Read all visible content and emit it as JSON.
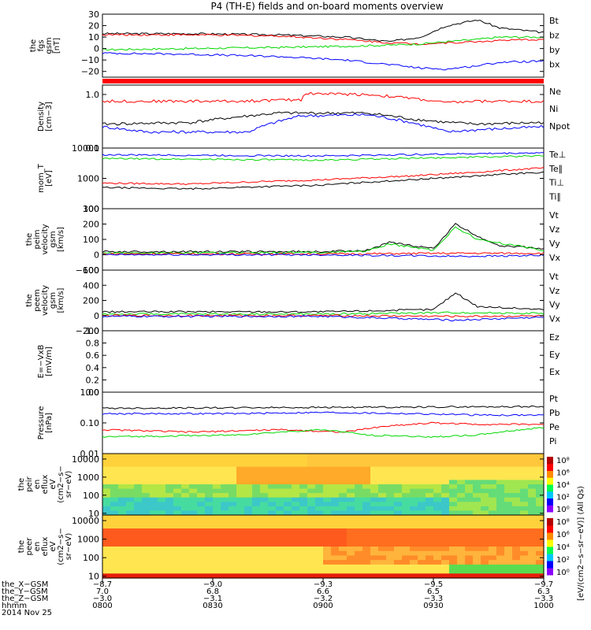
{
  "title": "P4 (TH-E) fields and on-board moments overview",
  "colors": {
    "black": "#000000",
    "red": "#ff0000",
    "green": "#00d800",
    "blue": "#0000ff"
  },
  "chart_data": [
    {
      "type": "line",
      "id": "bfield",
      "ylabel": [
        "the",
        "fgs",
        "gsm",
        "[nT]"
      ],
      "ylim": [
        -25,
        30
      ],
      "ticks": [
        "30",
        "20",
        "10",
        "0",
        "−10",
        "−20"
      ],
      "tick_values": [
        30,
        20,
        10,
        0,
        -10,
        -20
      ],
      "legend": [
        {
          "name": "Bt",
          "color": "black"
        },
        {
          "name": "bz",
          "color": "red"
        },
        {
          "name": "by",
          "color": "green"
        },
        {
          "name": "bx",
          "color": "blue"
        }
      ],
      "series": [
        {
          "color": "black",
          "x": [
            0,
            0.2,
            0.4,
            0.55,
            0.65,
            0.72,
            0.78,
            0.85,
            0.9,
            1
          ],
          "y": [
            13,
            13,
            12,
            10,
            6,
            10,
            20,
            25,
            18,
            14
          ]
        },
        {
          "color": "red",
          "x": [
            0,
            0.2,
            0.4,
            0.55,
            0.65,
            0.72,
            0.78,
            0.85,
            0.9,
            1
          ],
          "y": [
            12,
            12,
            11,
            8,
            5,
            4,
            5,
            6,
            7,
            8
          ]
        },
        {
          "color": "green",
          "x": [
            0,
            0.2,
            0.4,
            0.55,
            0.65,
            0.72,
            0.78,
            0.85,
            0.9,
            1
          ],
          "y": [
            -1,
            0,
            1,
            2,
            3,
            4,
            6,
            8,
            10,
            10
          ]
        },
        {
          "color": "blue",
          "x": [
            0,
            0.2,
            0.4,
            0.55,
            0.65,
            0.72,
            0.78,
            0.85,
            0.9,
            1
          ],
          "y": [
            -4,
            -5,
            -7,
            -10,
            -14,
            -17,
            -18,
            -15,
            -12,
            -11
          ]
        }
      ]
    },
    {
      "type": "line",
      "id": "density",
      "ylabel": [
        "Density",
        "[cm−3]"
      ],
      "log": true,
      "ylim": [
        0.1,
        1.5
      ],
      "ticks": [
        "1.0",
        "0.1"
      ],
      "tick_values": [
        1.0,
        0.1
      ],
      "legend": [
        {
          "name": "Ne",
          "color": "red"
        },
        {
          "name": "Ni",
          "color": "black"
        },
        {
          "name": "Npot",
          "color": "blue"
        }
      ],
      "series": [
        {
          "color": "red",
          "x": [
            0,
            0.3,
            0.45,
            0.46,
            0.6,
            0.7,
            0.78,
            0.85,
            1
          ],
          "y": [
            0.75,
            0.75,
            0.8,
            1.05,
            1.0,
            0.85,
            0.7,
            0.75,
            0.75
          ]
        },
        {
          "color": "black",
          "x": [
            0,
            0.2,
            0.4,
            0.6,
            0.7,
            0.78,
            0.85,
            1
          ],
          "y": [
            0.28,
            0.3,
            0.45,
            0.45,
            0.35,
            0.3,
            0.28,
            0.3
          ]
        },
        {
          "color": "blue",
          "x": [
            0,
            0.1,
            0.2,
            0.33,
            0.45,
            0.6,
            0.7,
            0.78,
            0.85,
            1
          ],
          "y": [
            0.25,
            0.2,
            0.2,
            0.2,
            0.4,
            0.42,
            0.3,
            0.2,
            0.22,
            0.25
          ]
        }
      ]
    },
    {
      "type": "line",
      "id": "temp",
      "ylabel": [
        "mom_T",
        "[eV]"
      ],
      "log": true,
      "ylim": [
        100,
        10000
      ],
      "ticks": [
        "10000",
        "1000",
        "100"
      ],
      "tick_values": [
        10000,
        1000,
        100
      ],
      "legend": [
        {
          "name": "Te⊥",
          "color": "red"
        },
        {
          "name": "Te∥",
          "color": "black"
        },
        {
          "name": "Ti⊥",
          "color": "blue"
        },
        {
          "name": "Ti∥",
          "color": "green"
        }
      ],
      "series": [
        {
          "color": "blue",
          "x": [
            0,
            0.5,
            1
          ],
          "y": [
            6000,
            5500,
            7000
          ]
        },
        {
          "color": "green",
          "x": [
            0,
            0.5,
            1
          ],
          "y": [
            4500,
            4000,
            5500
          ]
        },
        {
          "color": "red",
          "x": [
            0,
            0.2,
            0.5,
            0.7,
            0.85,
            1
          ],
          "y": [
            700,
            650,
            900,
            1200,
            1600,
            2200
          ]
        },
        {
          "color": "black",
          "x": [
            0,
            0.2,
            0.5,
            0.7,
            0.85,
            1
          ],
          "y": [
            500,
            450,
            600,
            900,
            1200,
            1600
          ]
        }
      ]
    },
    {
      "type": "line",
      "id": "peim",
      "ylabel": [
        "the",
        "peim",
        "velocity",
        "gsm",
        "[km/s]"
      ],
      "ylim": [
        -100,
        300
      ],
      "ticks": [
        "300",
        "200",
        "100",
        "0",
        "−100"
      ],
      "tick_values": [
        300,
        200,
        100,
        0,
        -100
      ],
      "legend": [
        {
          "name": "Vt",
          "color": "black"
        },
        {
          "name": "Vz",
          "color": "red"
        },
        {
          "name": "Vy",
          "color": "green"
        },
        {
          "name": "Vx",
          "color": "blue"
        }
      ],
      "series": [
        {
          "color": "black",
          "x": [
            0,
            0.5,
            0.6,
            0.65,
            0.7,
            0.75,
            0.8,
            0.85,
            0.9,
            1
          ],
          "y": [
            20,
            20,
            30,
            80,
            60,
            40,
            200,
            120,
            60,
            40
          ]
        },
        {
          "color": "green",
          "x": [
            0,
            0.5,
            0.6,
            0.65,
            0.75,
            0.8,
            0.85,
            1
          ],
          "y": [
            10,
            15,
            25,
            70,
            30,
            180,
            100,
            30
          ]
        },
        {
          "color": "red",
          "x": [
            0,
            0.5,
            0.8,
            1
          ],
          "y": [
            5,
            5,
            10,
            10
          ]
        },
        {
          "color": "blue",
          "x": [
            0,
            0.5,
            0.8,
            1
          ],
          "y": [
            0,
            0,
            -10,
            -5
          ]
        }
      ]
    },
    {
      "type": "line",
      "id": "peem",
      "ylabel": [
        "the",
        "peem",
        "velocity",
        "gsm",
        "[km/s]"
      ],
      "ylim": [
        -200,
        600
      ],
      "ticks": [
        "600",
        "400",
        "200",
        "0",
        "−200"
      ],
      "tick_values": [
        600,
        400,
        200,
        0,
        -200
      ],
      "legend": [
        {
          "name": "Vt",
          "color": "black"
        },
        {
          "name": "Vz",
          "color": "red"
        },
        {
          "name": "Vy",
          "color": "green"
        },
        {
          "name": "Vx",
          "color": "blue"
        }
      ],
      "series": [
        {
          "color": "black",
          "x": [
            0,
            0.5,
            0.75,
            0.8,
            0.85,
            1
          ],
          "y": [
            50,
            50,
            80,
            300,
            120,
            80
          ]
        },
        {
          "color": "green",
          "x": [
            0,
            0.5,
            0.8,
            1
          ],
          "y": [
            20,
            20,
            40,
            30
          ]
        },
        {
          "color": "red",
          "x": [
            0,
            0.5,
            0.8,
            1
          ],
          "y": [
            0,
            0,
            -10,
            -5
          ]
        },
        {
          "color": "blue",
          "x": [
            0,
            0.5,
            0.8,
            1
          ],
          "y": [
            -10,
            -10,
            -60,
            -20
          ]
        }
      ]
    },
    {
      "type": "line",
      "id": "efield",
      "ylabel": [
        "E=−VxB",
        "[mV/m]"
      ],
      "ylim": [
        0,
        1
      ],
      "ticks": [
        "1.0",
        "0.8",
        "0.6",
        "0.4",
        "0.2",
        "0.0"
      ],
      "tick_values": [
        1,
        0.8,
        0.6,
        0.4,
        0.2,
        0
      ],
      "legend": [
        {
          "name": "Ez",
          "color": "red"
        },
        {
          "name": "Ey",
          "color": "green"
        },
        {
          "name": "Ex",
          "color": "blue"
        }
      ],
      "series": []
    },
    {
      "type": "line",
      "id": "pressure",
      "ylabel": [
        "Pressure",
        "[nPa]"
      ],
      "log": true,
      "ylim": [
        0.01,
        1
      ],
      "ticks": [
        "1.00",
        "0.10",
        "0.01"
      ],
      "tick_values": [
        1,
        0.1,
        0.01
      ],
      "legend": [
        {
          "name": "Pt",
          "color": "black"
        },
        {
          "name": "Pb",
          "color": "red"
        },
        {
          "name": "Pe",
          "color": "green"
        },
        {
          "name": "Pi",
          "color": "blue"
        }
      ],
      "series": [
        {
          "color": "black",
          "x": [
            0,
            0.5,
            1
          ],
          "y": [
            0.3,
            0.32,
            0.34
          ]
        },
        {
          "color": "blue",
          "x": [
            0,
            0.3,
            0.5,
            0.7,
            0.85,
            1
          ],
          "y": [
            0.2,
            0.2,
            0.22,
            0.2,
            0.18,
            0.18
          ]
        },
        {
          "color": "red",
          "x": [
            0,
            0.2,
            0.4,
            0.55,
            0.65,
            0.75,
            0.85,
            1
          ],
          "y": [
            0.06,
            0.05,
            0.06,
            0.05,
            0.08,
            0.1,
            0.09,
            0.09
          ]
        },
        {
          "color": "green",
          "x": [
            0,
            0.3,
            0.5,
            0.6,
            0.75,
            0.85,
            1
          ],
          "y": [
            0.035,
            0.04,
            0.06,
            0.04,
            0.035,
            0.04,
            0.07
          ]
        }
      ]
    },
    {
      "type": "heatmap",
      "id": "peir",
      "ylabel": [
        "the",
        "peir",
        "en",
        "eflux",
        "eV",
        "(cm2−s−",
        "sr−eV)"
      ],
      "log": true,
      "ylim": [
        8,
        20000
      ],
      "ticks": [
        "10000",
        "1000",
        "100",
        "10"
      ],
      "tick_values": [
        10000,
        1000,
        100,
        10
      ],
      "colorbar": {
        "label": "[eV/(cm2−s−sr−eV)] (All Qs)",
        "ticks": [
          "10⁸",
          "10⁶",
          "10⁴",
          "10²",
          "10⁰"
        ]
      }
    },
    {
      "type": "heatmap",
      "id": "peer",
      "ylabel": [
        "the",
        "peer",
        "en",
        "eflux",
        "eV",
        "(cm2−s−",
        "sr−eV)"
      ],
      "log": true,
      "ylim": [
        8,
        20000
      ],
      "ticks": [
        "10000",
        "1000",
        "100",
        "10"
      ],
      "tick_values": [
        10000,
        1000,
        100,
        10
      ],
      "colorbar": {
        "label": "[eV/(cm2−s−sr−eV)] (All Qs)",
        "ticks": [
          "10⁸",
          "10⁶",
          "10⁴",
          "10²",
          "10⁰"
        ]
      }
    }
  ],
  "xaxis": {
    "rows": [
      {
        "label": "the_X−GSM",
        "values": [
          "−8.7",
          "−9.0",
          "−9.3",
          "−9.5",
          "−9.7"
        ]
      },
      {
        "label": "the_Y−GSM",
        "values": [
          "7.0",
          "6.8",
          "6.6",
          "6.5",
          "6.3"
        ]
      },
      {
        "label": "the_Z−GSM",
        "values": [
          "−3.0",
          "−3.1",
          "−3.2",
          "−3.3",
          "−3.3"
        ]
      },
      {
        "label": "hhmm",
        "values": [
          "0800",
          "0830",
          "0900",
          "0930",
          "1000"
        ]
      }
    ],
    "date": "2014 Nov 25"
  }
}
